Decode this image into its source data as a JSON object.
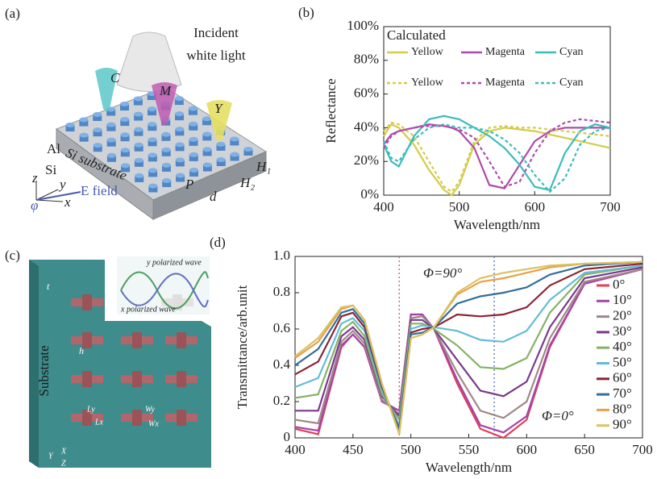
{
  "figure_a": {
    "label": "(a)",
    "incident": "Incident",
    "white_light": "white light",
    "cones": [
      "C",
      "M",
      "Y"
    ],
    "al": "Al",
    "si": "Si",
    "substrate": "Si substrate",
    "axes": [
      "z",
      "y",
      "x"
    ],
    "field": "E field",
    "phi": "φ",
    "dims": [
      "P",
      "d",
      "H₁",
      "H₂"
    ]
  },
  "figure_c": {
    "label": "(c)",
    "thickness": "t",
    "height": "h",
    "substrate": "Substrate",
    "waves": [
      "y polarized wave",
      "x polarized wave"
    ],
    "dims": [
      "Ly",
      "Wy",
      "Lx",
      "Wx"
    ],
    "axes": [
      "Y",
      "X",
      "Z"
    ]
  },
  "chart_data": [
    {
      "type": "line",
      "panel": "(b)",
      "x_label": "Wavelength/nm",
      "y_label": "Reflectance",
      "legend_title": "Calculated",
      "legend_position": "top",
      "x": [
        400,
        410,
        420,
        440,
        460,
        480,
        490,
        500,
        520,
        540,
        560,
        580,
        600,
        620,
        640,
        660,
        680,
        700
      ],
      "xlim": [
        400,
        700
      ],
      "xticks": [
        400,
        500,
        600,
        700
      ],
      "ylim": [
        0,
        100
      ],
      "yticks": [
        {
          "value": 0,
          "label": "0%"
        },
        {
          "value": 20,
          "label": "20%"
        },
        {
          "value": 40,
          "label": "40%"
        },
        {
          "value": 60,
          "label": "60%"
        },
        {
          "value": 80,
          "label": "80%"
        },
        {
          "value": 100,
          "label": "100%"
        }
      ],
      "series": [
        {
          "name": "Yellow",
          "color": "#d4cc4a",
          "linestyle": "solid",
          "values": [
            35,
            42,
            40,
            30,
            15,
            3,
            0,
            6,
            30,
            38,
            40,
            39,
            38,
            36,
            34,
            32,
            30,
            28
          ]
        },
        {
          "name": "Magenta",
          "color": "#b04aaa",
          "linestyle": "solid",
          "values": [
            30,
            36,
            38,
            40,
            42,
            41,
            40,
            38,
            28,
            6,
            4,
            18,
            32,
            38,
            40,
            40,
            40,
            40
          ]
        },
        {
          "name": "Cyan",
          "color": "#3cbcbc",
          "linestyle": "solid",
          "values": [
            30,
            20,
            17,
            35,
            45,
            47,
            46,
            45,
            40,
            35,
            28,
            18,
            5,
            3,
            25,
            38,
            42,
            40
          ]
        },
        {
          "name": "Yellow",
          "color": "#d4cc4a",
          "linestyle": "dashed",
          "values": [
            38,
            43,
            42,
            35,
            20,
            5,
            2,
            8,
            32,
            40,
            41,
            40,
            40,
            39,
            38,
            37,
            36,
            35
          ]
        },
        {
          "name": "Magenta",
          "color": "#b04aaa",
          "linestyle": "dashed",
          "values": [
            28,
            35,
            38,
            40,
            41,
            41,
            40,
            39,
            34,
            20,
            5,
            8,
            25,
            38,
            43,
            45,
            44,
            43
          ]
        },
        {
          "name": "Cyan",
          "color": "#3cbcbc",
          "linestyle": "dashed",
          "values": [
            32,
            22,
            20,
            33,
            40,
            42,
            41,
            40,
            40,
            38,
            33,
            25,
            12,
            2,
            10,
            30,
            38,
            40
          ]
        }
      ]
    },
    {
      "type": "line",
      "panel": "(d)",
      "x_label": "Wavelength/nm",
      "y_label": "Transmittance/arb.unit",
      "legend_position": "right",
      "annotations": [
        "Φ=90°",
        "Φ=0°"
      ],
      "reference_lines": [
        {
          "x": 490,
          "color": "#c07080"
        },
        {
          "x": 572,
          "color": "#7080c8"
        }
      ],
      "x": [
        400,
        420,
        440,
        450,
        460,
        475,
        490,
        500,
        510,
        520,
        540,
        560,
        580,
        600,
        620,
        650,
        700
      ],
      "xlim": [
        400,
        700
      ],
      "xticks": [
        400,
        450,
        500,
        550,
        600,
        650,
        700
      ],
      "ylim": [
        0,
        1
      ],
      "yticks": [
        0,
        0.2,
        0.4,
        0.6,
        0.8,
        {
          "value": 1,
          "label": "1.0"
        }
      ],
      "series": [
        {
          "name": "0°",
          "color": "#e0405a",
          "values": [
            0.05,
            0.02,
            0.5,
            0.57,
            0.5,
            0.2,
            0.15,
            0.68,
            0.68,
            0.6,
            0.3,
            0.05,
            0.0,
            0.1,
            0.5,
            0.85,
            0.93
          ]
        },
        {
          "name": "10°",
          "color": "#a444a8",
          "values": [
            0.06,
            0.04,
            0.51,
            0.57,
            0.5,
            0.2,
            0.15,
            0.68,
            0.68,
            0.6,
            0.32,
            0.07,
            0.03,
            0.12,
            0.51,
            0.85,
            0.93
          ]
        },
        {
          "name": "20°",
          "color": "#a08888",
          "values": [
            0.1,
            0.08,
            0.53,
            0.59,
            0.52,
            0.21,
            0.13,
            0.66,
            0.67,
            0.6,
            0.36,
            0.15,
            0.11,
            0.2,
            0.55,
            0.86,
            0.93
          ]
        },
        {
          "name": "30°",
          "color": "#7a3a8c",
          "values": [
            0.15,
            0.15,
            0.56,
            0.61,
            0.54,
            0.23,
            0.12,
            0.65,
            0.65,
            0.6,
            0.43,
            0.26,
            0.23,
            0.31,
            0.61,
            0.88,
            0.94
          ]
        },
        {
          "name": "40°",
          "color": "#86b266",
          "values": [
            0.22,
            0.24,
            0.59,
            0.64,
            0.56,
            0.24,
            0.1,
            0.63,
            0.63,
            0.6,
            0.51,
            0.39,
            0.38,
            0.44,
            0.69,
            0.9,
            0.95
          ]
        },
        {
          "name": "50°",
          "color": "#62bcd8",
          "values": [
            0.28,
            0.33,
            0.63,
            0.66,
            0.59,
            0.26,
            0.07,
            0.6,
            0.62,
            0.61,
            0.59,
            0.54,
            0.53,
            0.59,
            0.76,
            0.91,
            0.95
          ]
        },
        {
          "name": "60°",
          "color": "#8c2436",
          "values": [
            0.35,
            0.42,
            0.67,
            0.69,
            0.61,
            0.28,
            0.05,
            0.58,
            0.6,
            0.61,
            0.68,
            0.67,
            0.68,
            0.72,
            0.84,
            0.93,
            0.96
          ]
        },
        {
          "name": "70°",
          "color": "#336e9c",
          "values": [
            0.4,
            0.49,
            0.69,
            0.71,
            0.63,
            0.29,
            0.04,
            0.57,
            0.58,
            0.61,
            0.74,
            0.78,
            0.8,
            0.83,
            0.9,
            0.95,
            0.97
          ]
        },
        {
          "name": "80°",
          "color": "#eba046",
          "values": [
            0.44,
            0.53,
            0.71,
            0.73,
            0.65,
            0.3,
            0.02,
            0.55,
            0.57,
            0.61,
            0.79,
            0.86,
            0.88,
            0.91,
            0.94,
            0.96,
            0.97
          ]
        },
        {
          "name": "90°",
          "color": "#d8c266",
          "values": [
            0.45,
            0.55,
            0.72,
            0.73,
            0.65,
            0.3,
            0.02,
            0.55,
            0.57,
            0.61,
            0.8,
            0.88,
            0.91,
            0.93,
            0.95,
            0.96,
            0.97
          ]
        }
      ]
    }
  ]
}
